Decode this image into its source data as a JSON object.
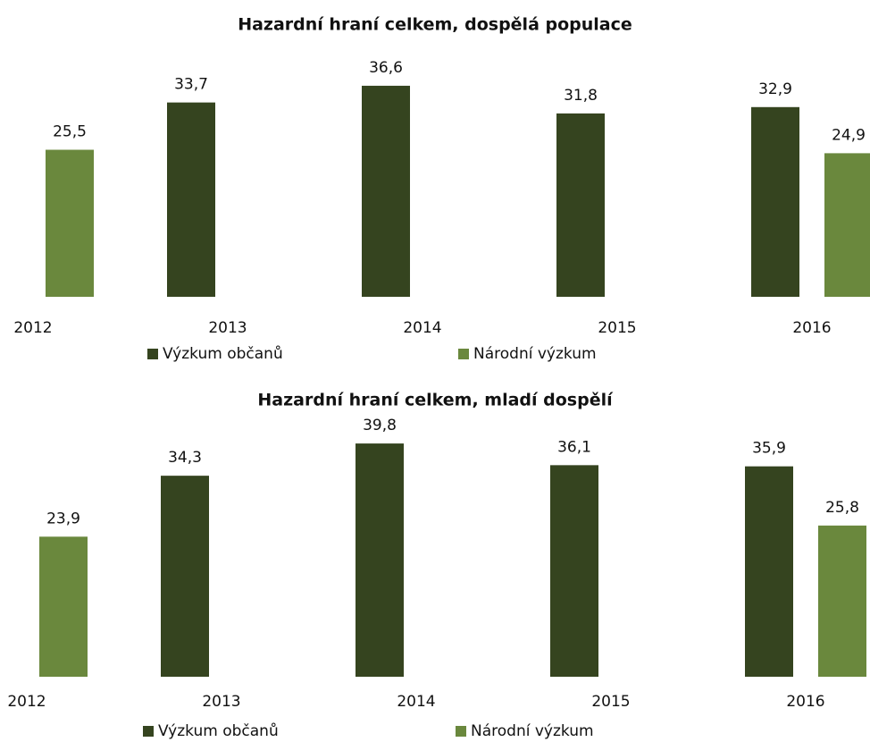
{
  "chart_data": [
    {
      "type": "bar",
      "title": "Hazardní hraní celkem, dospělá populace",
      "categories": [
        "2012",
        "2013",
        "2014",
        "2015",
        "2016"
      ],
      "series": [
        {
          "name": "Výzkum občanů",
          "color": "#35441f",
          "values": [
            null,
            33.7,
            36.6,
            31.8,
            32.9
          ],
          "value_labels": [
            null,
            "33,7",
            "36,6",
            "31,8",
            "32,9"
          ]
        },
        {
          "name": "Národní výzkum",
          "color": "#6a883d",
          "values": [
            25.5,
            null,
            null,
            null,
            24.9
          ],
          "value_labels": [
            "25,5",
            null,
            null,
            null,
            "24,9"
          ]
        }
      ],
      "ylim": [
        0,
        40
      ]
    },
    {
      "type": "bar",
      "title": "Hazardní hraní celkem, mladí dospělí",
      "categories": [
        "2012",
        "2013",
        "2014",
        "2015",
        "2016"
      ],
      "series": [
        {
          "name": "Výzkum občanů",
          "color": "#35441f",
          "values": [
            null,
            34.3,
            39.8,
            36.1,
            35.9
          ],
          "value_labels": [
            null,
            "34,3",
            "39,8",
            "36,1",
            "35,9"
          ]
        },
        {
          "name": "Národní výzkum",
          "color": "#6a883d",
          "values": [
            23.9,
            null,
            null,
            null,
            25.8
          ],
          "value_labels": [
            "23,9",
            null,
            null,
            null,
            "25,8"
          ]
        }
      ],
      "ylim": [
        0,
        45
      ]
    }
  ]
}
